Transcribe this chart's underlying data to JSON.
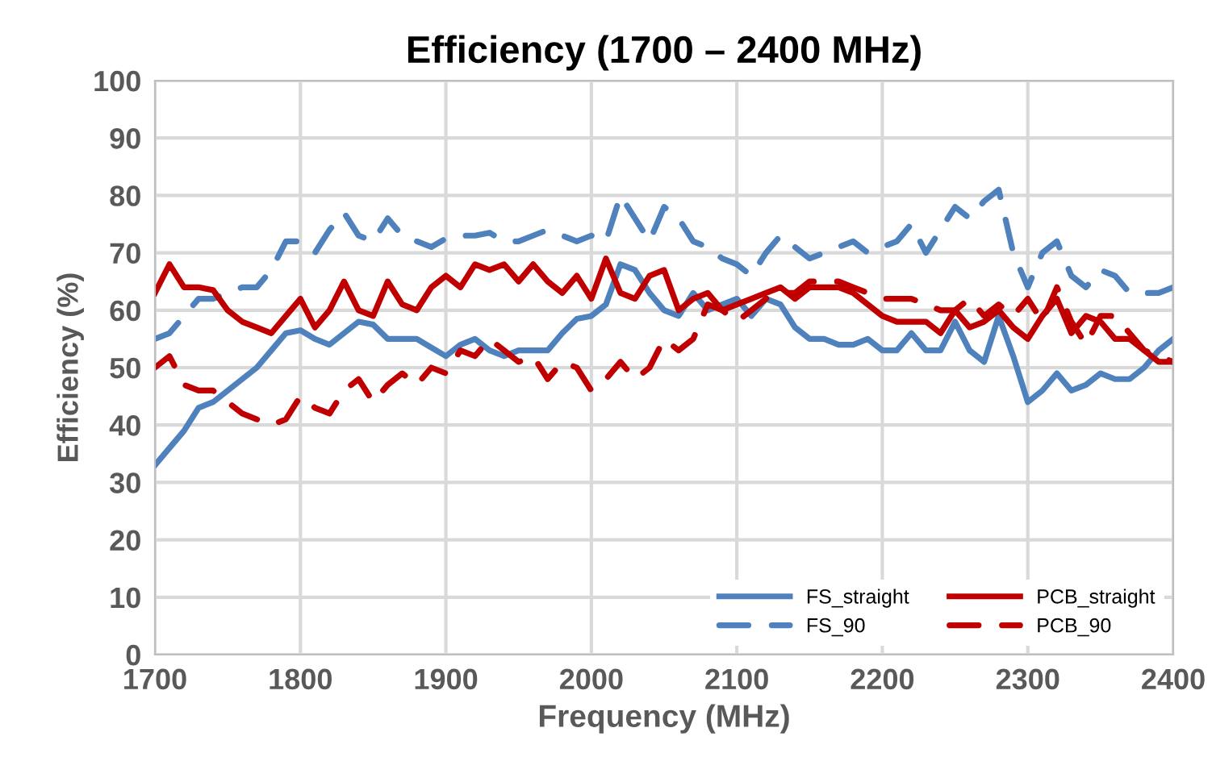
{
  "chart_data": {
    "type": "line",
    "title": "Efficiency (1700 – 2400 MHz)",
    "xlabel": "Frequency (MHz)",
    "ylabel": "Efficiency (%)",
    "x": [
      1700,
      1710,
      1720,
      1730,
      1740,
      1750,
      1760,
      1770,
      1780,
      1790,
      1800,
      1810,
      1820,
      1830,
      1840,
      1850,
      1860,
      1870,
      1880,
      1890,
      1900,
      1910,
      1920,
      1930,
      1940,
      1950,
      1960,
      1970,
      1980,
      1990,
      2000,
      2010,
      2020,
      2030,
      2040,
      2050,
      2060,
      2070,
      2080,
      2090,
      2100,
      2110,
      2120,
      2130,
      2140,
      2150,
      2160,
      2170,
      2180,
      2190,
      2200,
      2210,
      2220,
      2230,
      2240,
      2250,
      2260,
      2270,
      2280,
      2290,
      2300,
      2310,
      2320,
      2330,
      2340,
      2350,
      2360,
      2370,
      2380,
      2390,
      2400
    ],
    "series": [
      {
        "name": "FS_straight",
        "color": "#4f81bd",
        "line_style": "solid",
        "values": [
          33,
          36,
          39,
          43,
          44,
          46,
          48,
          50,
          53,
          56,
          56.5,
          55,
          54,
          56,
          58,
          57.5,
          55,
          55,
          55,
          53.5,
          52,
          54,
          55,
          53,
          52,
          53,
          53,
          53,
          56,
          58.5,
          59,
          61,
          68,
          67,
          63,
          60,
          59,
          63,
          60,
          61,
          62,
          59,
          62,
          61,
          57,
          55,
          55,
          54,
          54,
          55,
          53,
          53,
          56,
          53,
          53,
          58,
          53,
          51,
          59,
          52,
          44,
          46,
          49,
          46,
          47,
          49,
          48,
          48,
          50,
          53,
          55
        ]
      },
      {
        "name": "FS_90",
        "color": "#4f81bd",
        "line_style": "dashed",
        "values": [
          55,
          56,
          59,
          62,
          62,
          63,
          64,
          64,
          67,
          72,
          72,
          70,
          74,
          77,
          73,
          72,
          76,
          73,
          72,
          71,
          72.5,
          73,
          73,
          73.5,
          72,
          72,
          73,
          74,
          73,
          72,
          73,
          72,
          80,
          76,
          72,
          78,
          76,
          72,
          71,
          69,
          68,
          66,
          70,
          73,
          71,
          69,
          70,
          71,
          72,
          70,
          71,
          72,
          75,
          70,
          74,
          78,
          76,
          79,
          81,
          70,
          64,
          70,
          72,
          66,
          64,
          67,
          66,
          63,
          63,
          63,
          64
        ]
      },
      {
        "name": "PCB_straight",
        "color": "#c00000",
        "line_style": "solid",
        "values": [
          63,
          68,
          64,
          64,
          63.5,
          60,
          58,
          57,
          56,
          59,
          62,
          57,
          60,
          65,
          60,
          59,
          65,
          61,
          60,
          64,
          66,
          64,
          68,
          67,
          68,
          65,
          68,
          65,
          63,
          66,
          62,
          69,
          63,
          62,
          66,
          67,
          60,
          62,
          63,
          60,
          61,
          62,
          63,
          64,
          62,
          64,
          64,
          64,
          63,
          61,
          59,
          58,
          58,
          58,
          56,
          60,
          57,
          58,
          60,
          57,
          55,
          59,
          62,
          56,
          59,
          58,
          55,
          55,
          53,
          51,
          51
        ]
      },
      {
        "name": "PCB_90",
        "color": "#c00000",
        "line_style": "dashed",
        "values": [
          50,
          52,
          47,
          46,
          46,
          44,
          42,
          41,
          40,
          41,
          45,
          43,
          42,
          46,
          48,
          44,
          47,
          49,
          47,
          50,
          49,
          53,
          52,
          55,
          53,
          51,
          52,
          48,
          51,
          50,
          46,
          48,
          51,
          48,
          50,
          55,
          53,
          55,
          61,
          60,
          58,
          60,
          62,
          63,
          63,
          65,
          65,
          65,
          64,
          63,
          62,
          62,
          62,
          61,
          60,
          60,
          62,
          59,
          61,
          59,
          62,
          58,
          64,
          58,
          54,
          59,
          59,
          56,
          53,
          52,
          51
        ]
      }
    ],
    "xlim": [
      1700,
      2400
    ],
    "xticks": [
      1700,
      1800,
      1900,
      2000,
      2100,
      2200,
      2300,
      2400
    ],
    "ylim": [
      0,
      100
    ],
    "yticks": [
      0,
      10,
      20,
      30,
      40,
      50,
      60,
      70,
      80,
      90,
      100
    ],
    "grid": true,
    "legend": "bottom right"
  }
}
